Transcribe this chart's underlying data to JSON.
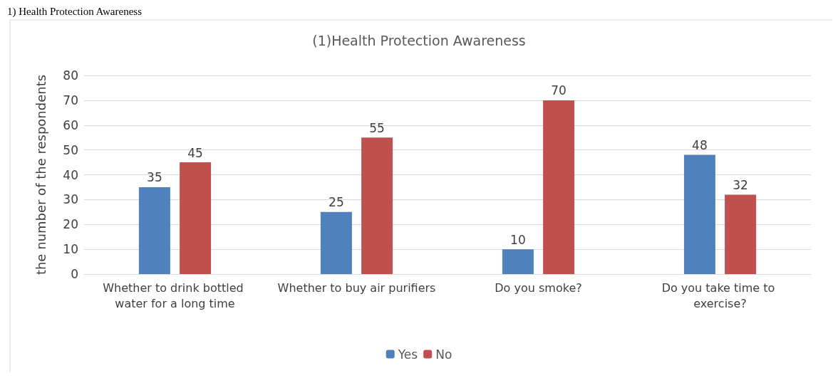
{
  "chart_data": {
    "type": "bar",
    "title": "(1)Health Protection Awareness",
    "ylabel": "the number of the respondents",
    "annotations": [
      "1) Health Protection Awareness"
    ],
    "categories": [
      "Whether to drink bottled water for a long time",
      "Whether to buy air purifiers",
      "Do you smoke?",
      "Do you take time to exercise?"
    ],
    "series": [
      {
        "name": "Yes",
        "color": "#4f81bd",
        "values": [
          35,
          25,
          10,
          48
        ]
      },
      {
        "name": "No",
        "color": "#c0504d",
        "values": [
          45,
          55,
          70,
          32
        ]
      }
    ],
    "ylim": [
      0,
      80
    ],
    "yticks": [
      0,
      10,
      20,
      30,
      40,
      50,
      60,
      70,
      80
    ],
    "grid": "y",
    "legend": "bottom",
    "data_labels": true
  }
}
